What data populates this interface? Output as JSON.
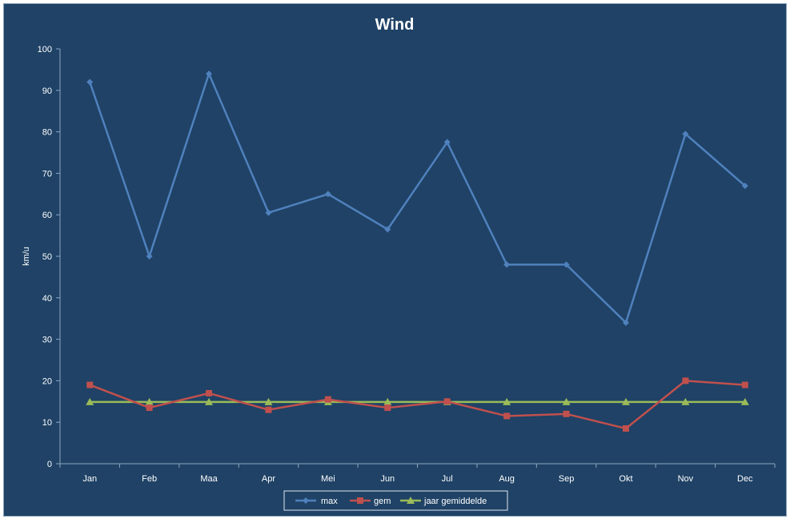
{
  "chart_data": {
    "type": "line",
    "title": "Wind",
    "xlabel": "",
    "ylabel": "km/u",
    "ylim": [
      0,
      100
    ],
    "yticks": [
      "0",
      "10",
      "20",
      "30",
      "40",
      "50",
      "60",
      "70",
      "80",
      "90",
      "100"
    ],
    "categories": [
      "Jan",
      "Feb",
      "Maa",
      "Apr",
      "Mei",
      "Jun",
      "Jul",
      "Aug",
      "Sep",
      "Okt",
      "Nov",
      "Dec"
    ],
    "grid": false,
    "legend_position": "bottom",
    "series": [
      {
        "name": "max",
        "color": "#4f81bd",
        "marker": "diamond",
        "values": [
          92,
          50,
          94,
          60.5,
          65,
          56.5,
          77.5,
          48,
          48,
          34,
          79.5,
          67
        ]
      },
      {
        "name": "gem",
        "color": "#c0504d",
        "marker": "square",
        "values": [
          19,
          13.5,
          17,
          13,
          15.5,
          13.5,
          15,
          11.5,
          12,
          8.5,
          20,
          19
        ]
      },
      {
        "name": "jaar gemiddelde",
        "color": "#9bbb59",
        "marker": "triangle",
        "values": [
          14.9,
          14.9,
          14.9,
          14.9,
          14.9,
          14.9,
          14.9,
          14.9,
          14.9,
          14.9,
          14.9,
          14.9
        ]
      }
    ]
  }
}
